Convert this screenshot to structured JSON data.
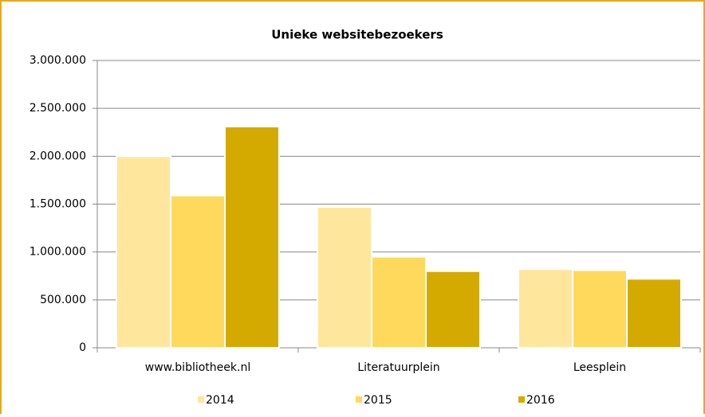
{
  "chart_data": {
    "type": "bar",
    "title": "Unieke websitebezoekers",
    "categories": [
      "www.bibliotheek.nl",
      "Literatuurplein",
      "Leesplein"
    ],
    "series": [
      {
        "name": "2014",
        "color": "#fee69c",
        "values": [
          2000000,
          1470000,
          820000
        ]
      },
      {
        "name": "2015",
        "color": "#fed95c",
        "values": [
          1590000,
          950000,
          810000
        ]
      },
      {
        "name": "2016",
        "color": "#d4aa00",
        "values": [
          2310000,
          800000,
          720000
        ]
      }
    ],
    "ylim": [
      0,
      3000000
    ],
    "yticks": [
      0,
      {
        "value": 500000,
        "label": "500.000"
      },
      {
        "value": 1000000,
        "label": "1.000.000"
      },
      {
        "value": 1500000,
        "label": "1.500.000"
      },
      {
        "value": 2000000,
        "label": "2.000.000"
      },
      {
        "value": 2500000,
        "label": "2.500.000"
      },
      {
        "value": 3000000,
        "label": "3.000.000"
      }
    ],
    "grid": true,
    "legend": "bottom"
  }
}
